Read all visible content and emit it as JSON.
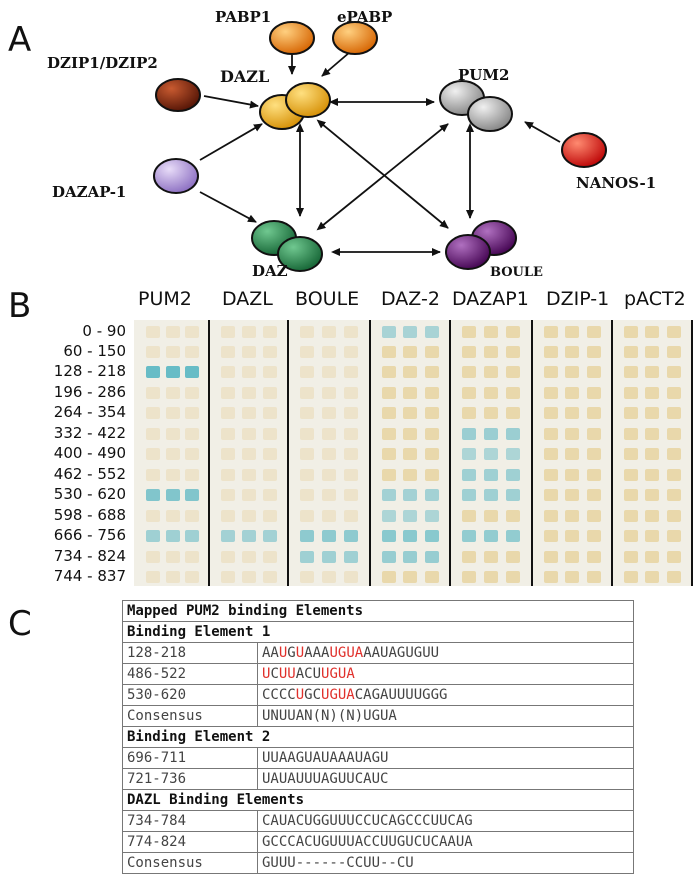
{
  "panel_a": {
    "letter": "A",
    "nodes": {
      "pabp1": "PABP1",
      "epabp": "ePABP",
      "dzip": "DZIP1/DZIP2",
      "dazl": "DAZL",
      "pum2": "PUM2",
      "nanos": "NANOS-1",
      "dazap": "DAZAP-1",
      "daz": "DAZ",
      "boule": "BOULE"
    },
    "colors": {
      "pabp": "#f08a1e",
      "dzip": "#7a2a10",
      "dazl": "#f0b020",
      "pum2": "#a8a8a8",
      "nanos": "#e02018",
      "dazap": "#b49ad8",
      "daz": "#2e8a50",
      "boule": "#6a1878"
    }
  },
  "panel_b": {
    "letter": "B",
    "columns": [
      "PUM2",
      "DAZL",
      "BOULE",
      "DAZ-2",
      "DAZAP1",
      "DZIP-1",
      "pACT2"
    ],
    "rows": [
      "0 - 90",
      "60 - 150",
      "128 - 218",
      "196 - 286",
      "264 - 354",
      "332 - 422",
      "400 - 490",
      "462 - 552",
      "530 - 620",
      "598 - 688",
      "666 - 756",
      "734 - 824",
      "744 - 837"
    ],
    "colors": {
      "blue": "#5fb8c4",
      "yellow": "#e8d3a0"
    }
  },
  "panel_c": {
    "letter": "C",
    "title": "Mapped PUM2 binding Elements",
    "sections": [
      {
        "header": "Binding Element 1",
        "rows": [
          {
            "label": "128-218",
            "segments": [
              [
                "AA",
                0
              ],
              [
                "U",
                1
              ],
              [
                "G",
                0
              ],
              [
                "U",
                1
              ],
              [
                "AAA",
                0
              ],
              [
                "UGUA",
                1
              ],
              [
                "AAUAGUGUU",
                0
              ]
            ]
          },
          {
            "label": "486-522",
            "segments": [
              [
                "U",
                1
              ],
              [
                "C",
                0
              ],
              [
                "UU",
                1
              ],
              [
                "ACU",
                0
              ],
              [
                "UGUA",
                1
              ]
            ]
          },
          {
            "label": "530-620",
            "segments": [
              [
                "CCCC",
                0
              ],
              [
                "U",
                1
              ],
              [
                "GC",
                0
              ],
              [
                "UGUA",
                1
              ],
              [
                "CAGAUUUUGGG",
                0
              ]
            ]
          },
          {
            "label": "Consensus",
            "segments": [
              [
                "UNUUAN(N)(N)UGUA",
                0
              ]
            ]
          }
        ]
      },
      {
        "header": "Binding Element 2",
        "rows": [
          {
            "label": "696-711",
            "segments": [
              [
                "UUAAGUAUAAAUAGU",
                0
              ]
            ]
          },
          {
            "label": "721-736",
            "segments": [
              [
                "UAUAUUUAGUUCAUC",
                0
              ]
            ]
          }
        ]
      },
      {
        "header": "DAZL Binding Elements",
        "rows": [
          {
            "label": "734-784",
            "segments": [
              [
                "CAUACUGGUUUCCUCAGCCCUUCAG",
                0
              ]
            ]
          },
          {
            "label": "774-824",
            "segments": [
              [
                "GCCCACUGUUUACCUUGUCUCAAUA",
                0
              ]
            ]
          },
          {
            "label": "Consensus",
            "segments": [
              [
                "GUUU------CCUU--CU",
                0
              ]
            ]
          }
        ]
      }
    ]
  }
}
